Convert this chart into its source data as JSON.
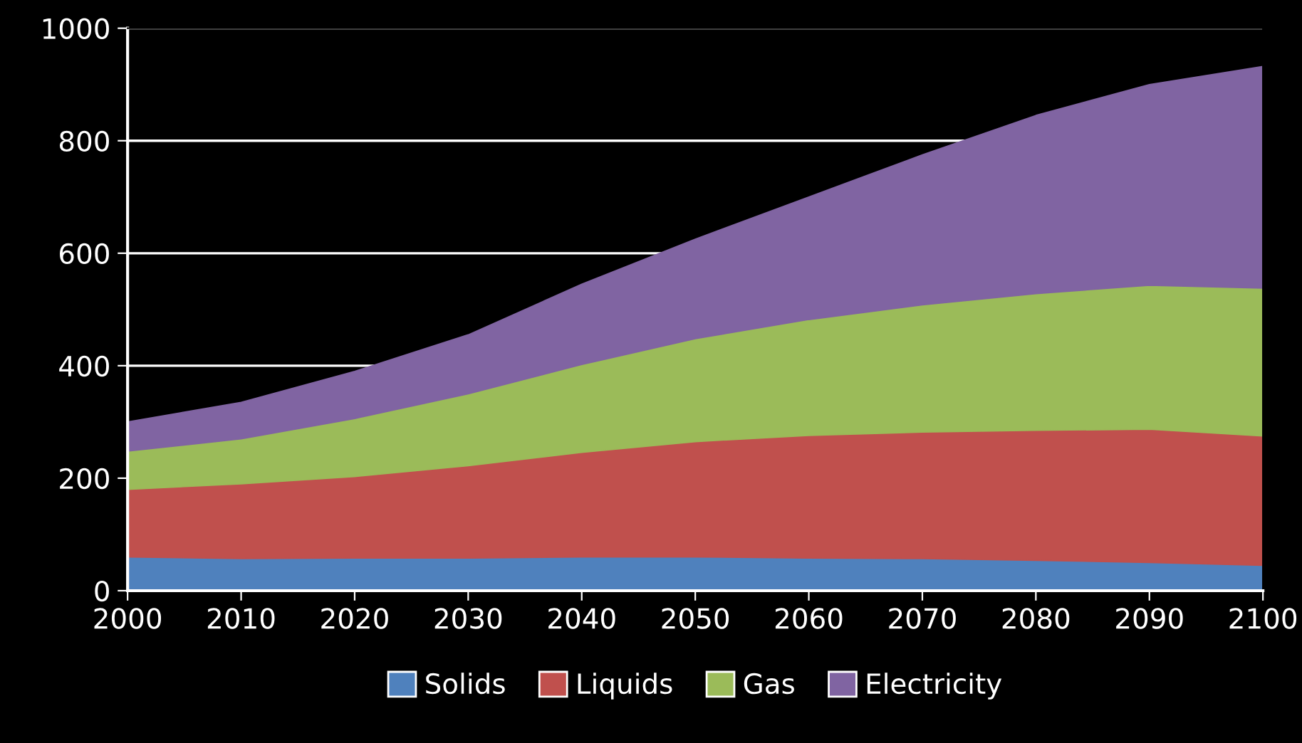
{
  "chart_data": {
    "type": "area",
    "stacked": true,
    "x": [
      2000,
      2010,
      2020,
      2030,
      2040,
      2050,
      2060,
      2070,
      2080,
      2090,
      2100
    ],
    "series": [
      {
        "name": "Solids",
        "color": "#4f81bd",
        "values": [
          60,
          57,
          58,
          58,
          60,
          60,
          58,
          57,
          54,
          50,
          45
        ]
      },
      {
        "name": "Liquids",
        "color": "#c0504d",
        "values": [
          120,
          133,
          145,
          164,
          186,
          205,
          218,
          225,
          231,
          237,
          230
        ]
      },
      {
        "name": "Gas",
        "color": "#9bbb59",
        "values": [
          68,
          80,
          103,
          128,
          156,
          183,
          206,
          226,
          243,
          256,
          263
        ]
      },
      {
        "name": "Electricity",
        "color": "#8064a2",
        "values": [
          52,
          65,
          84,
          105,
          143,
          177,
          218,
          267,
          317,
          357,
          394
        ]
      }
    ],
    "xlim": [
      2000,
      2100
    ],
    "xticks": [
      2000,
      2010,
      2020,
      2030,
      2040,
      2050,
      2060,
      2070,
      2080,
      2090,
      2100
    ],
    "ylim": [
      0,
      1000
    ],
    "yticks": [
      0,
      200,
      400,
      600,
      800,
      1000
    ],
    "grid": "y",
    "legend": "bottom"
  }
}
